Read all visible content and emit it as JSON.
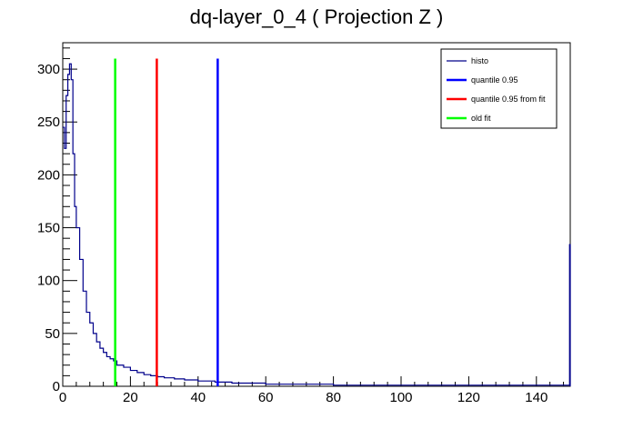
{
  "chart_data": {
    "type": "line",
    "title": "dq-layer_0_4 ( Projection Z )",
    "xlabel": "",
    "ylabel": "",
    "xlim": [
      0,
      150
    ],
    "ylim": [
      0,
      325
    ],
    "x_ticks": [
      0,
      20,
      40,
      60,
      80,
      100,
      120,
      140
    ],
    "y_ticks": [
      0,
      50,
      100,
      150,
      200,
      250,
      300
    ],
    "grid": false,
    "legend_position": "top-right",
    "series": [
      {
        "name": "histo",
        "color": "#00008b",
        "style": "step",
        "x": [
          0,
          0.5,
          1,
          1.5,
          2,
          2.5,
          3,
          3.5,
          4,
          5,
          6,
          7,
          8,
          9,
          10,
          11,
          12,
          13,
          14,
          15,
          16,
          18,
          20,
          22,
          24,
          26,
          28,
          30,
          33,
          36,
          40,
          45,
          50,
          55,
          60,
          70,
          80,
          90,
          100,
          110,
          120,
          130,
          140,
          149,
          149.8
        ],
        "y": [
          245,
          225,
          275,
          295,
          305,
          290,
          220,
          170,
          150,
          120,
          90,
          70,
          60,
          50,
          42,
          36,
          32,
          28,
          26,
          24,
          20,
          18,
          15,
          13,
          11,
          10,
          9,
          8,
          7,
          6,
          5,
          4,
          3,
          3,
          2,
          2,
          1,
          1,
          1,
          1,
          1,
          1,
          1,
          1,
          134
        ]
      },
      {
        "name": "quantile 0.95",
        "color": "#0000ff",
        "style": "vline",
        "x": 45.8,
        "height": 310
      },
      {
        "name": "quantile 0.95 from fit",
        "color": "#ff0000",
        "style": "vline",
        "x": 27.8,
        "height": 310
      },
      {
        "name": "old fit",
        "color": "#00ff00",
        "style": "vline",
        "x": 15.5,
        "height": 310
      }
    ]
  }
}
